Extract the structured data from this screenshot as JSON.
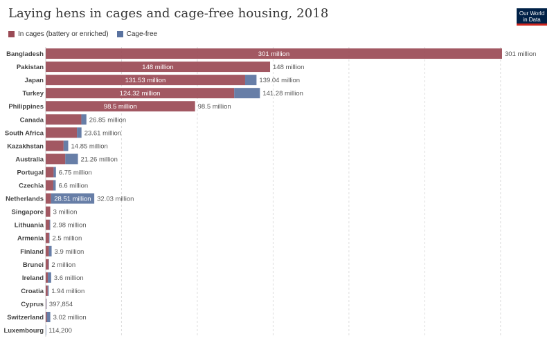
{
  "header": {
    "title": "Laying hens in cages and cage-free housing, 2018",
    "logo_line1": "Our World",
    "logo_line2": "in Data"
  },
  "colors": {
    "cages": "#9a4a55",
    "cagefree": "#5a73a0",
    "text": "#555555",
    "label_light": "#ffffff"
  },
  "chart_data": {
    "type": "bar",
    "orientation": "horizontal",
    "stacked": true,
    "title": "Laying hens in cages and cage-free housing, 2018",
    "legend": [
      "In cages (battery or enriched)",
      "Cage-free"
    ],
    "legend_position": "top-left",
    "grid": true,
    "xlim": [
      0,
      301000000
    ],
    "categories": [
      "Bangladesh",
      "Pakistan",
      "Japan",
      "Turkey",
      "Philippines",
      "Canada",
      "South Africa",
      "Kazakhstan",
      "Australia",
      "Portugal",
      "Czechia",
      "Netherlands",
      "Singapore",
      "Lithuania",
      "Armenia",
      "Finland",
      "Brunei",
      "Ireland",
      "Croatia",
      "Cyprus",
      "Switzerland",
      "Luxembourg"
    ],
    "series": [
      {
        "name": "In cages (battery or enriched)",
        "values": [
          301000000,
          148000000,
          131530000,
          124320000,
          98500000,
          23500000,
          20600000,
          11800000,
          12900000,
          5200000,
          5000000,
          3520000,
          3000000,
          2500000,
          2250000,
          2100000,
          1900000,
          1400000,
          1300000,
          300000,
          700000,
          0
        ]
      },
      {
        "name": "Cage-free",
        "values": [
          0,
          0,
          7510000,
          16960000,
          0,
          3350000,
          3010000,
          3050000,
          8360000,
          1550000,
          1600000,
          28510000,
          0,
          480000,
          250000,
          1800000,
          100000,
          2200000,
          640000,
          97854,
          2320000,
          114200
        ]
      }
    ],
    "total_labels": [
      "301 million",
      "148 million",
      "139.04 million",
      "141.28 million",
      "98.5 million",
      "26.85 million",
      "23.61 million",
      "14.85 million",
      "21.26 million",
      "6.75 million",
      "6.6 million",
      "32.03 million",
      "3 million",
      "2.98 million",
      "2.5 million",
      "3.9 million",
      "2 million",
      "3.6 million",
      "1.94 million",
      "397,854",
      "3.02 million",
      "114,200"
    ],
    "inner_labels": [
      {
        "row": 0,
        "series": 0,
        "text": "301 million"
      },
      {
        "row": 1,
        "series": 0,
        "text": "148 million"
      },
      {
        "row": 2,
        "series": 0,
        "text": "131.53 million"
      },
      {
        "row": 3,
        "series": 0,
        "text": "124.32 million"
      },
      {
        "row": 4,
        "series": 0,
        "text": "98.5 million"
      },
      {
        "row": 11,
        "series": 1,
        "text": "28.51 million"
      }
    ]
  }
}
